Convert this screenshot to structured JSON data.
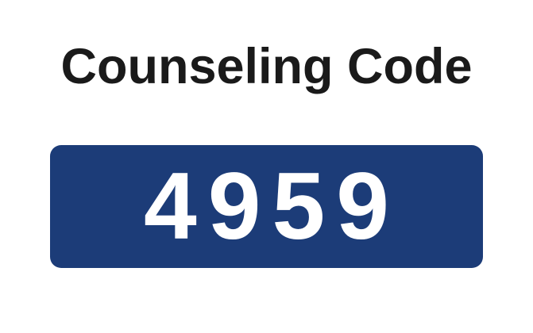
{
  "title": "Counseling Code",
  "code": {
    "value": "4959",
    "background_color": "#1c3c78",
    "text_color": "#ffffff"
  }
}
